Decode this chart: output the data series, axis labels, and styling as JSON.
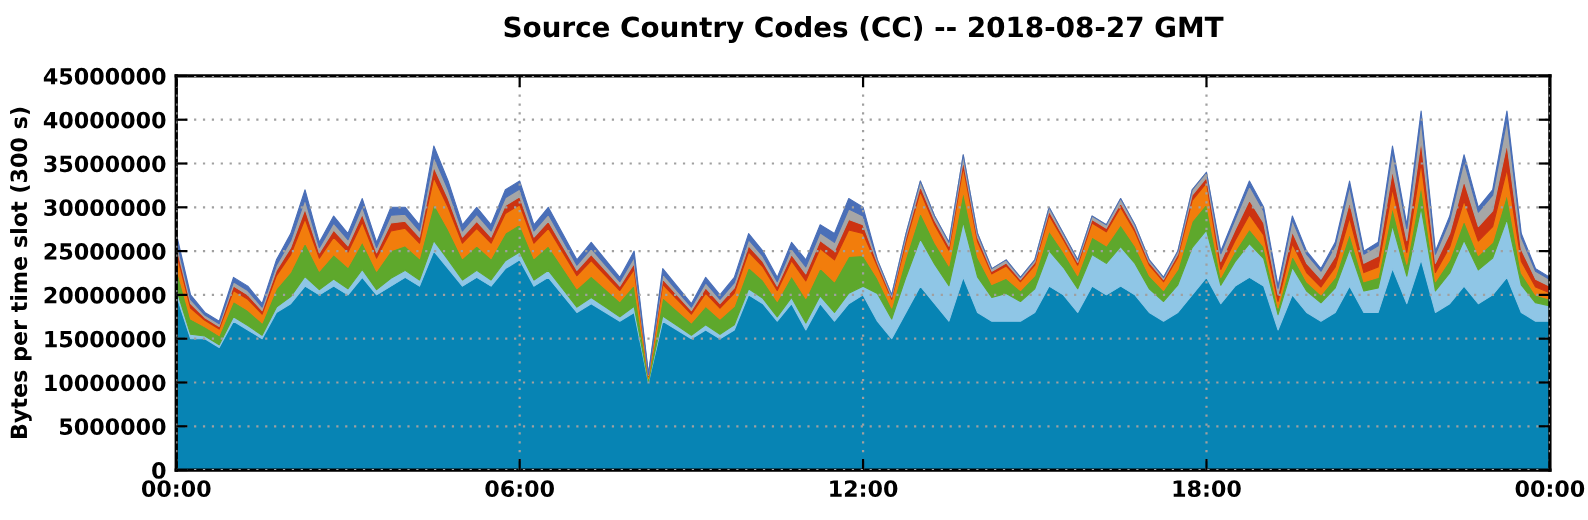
{
  "chart_data": {
    "type": "area",
    "stacked": true,
    "title": "Source Country Codes (CC) -- 2018-08-27 GMT",
    "ylabel": "Bytes per time slot (300 s)",
    "x": [
      0,
      0.25,
      0.5,
      0.75,
      1,
      1.25,
      1.5,
      1.75,
      2,
      2.25,
      2.5,
      2.75,
      3,
      3.25,
      3.5,
      3.75,
      4,
      4.25,
      4.5,
      4.75,
      5,
      5.25,
      5.5,
      5.75,
      6,
      6.25,
      6.5,
      6.75,
      7,
      7.25,
      7.5,
      7.75,
      8,
      8.25,
      8.5,
      8.75,
      9,
      9.25,
      9.5,
      9.75,
      10,
      10.25,
      10.5,
      10.75,
      11,
      11.25,
      11.5,
      11.75,
      12,
      12.25,
      12.5,
      12.75,
      13,
      13.25,
      13.5,
      13.75,
      14,
      14.25,
      14.5,
      14.75,
      15,
      15.25,
      15.5,
      15.75,
      16,
      16.25,
      16.5,
      16.75,
      17,
      17.25,
      17.5,
      17.75,
      18,
      18.25,
      18.5,
      18.75,
      19,
      19.25,
      19.5,
      19.75,
      20,
      20.25,
      20.5,
      20.75,
      21,
      21.25,
      21.5,
      21.75,
      22,
      22.25,
      22.5,
      22.75,
      23,
      23.25,
      23.5,
      23.75,
      24
    ],
    "series": [
      {
        "color": "#0784b4",
        "values": [
          20000000.0,
          15000000.0,
          15000000.0,
          14000000.0,
          17000000.0,
          16000000.0,
          15000000.0,
          18000000.0,
          19000000.0,
          21000000.0,
          20000000.0,
          21000000.0,
          20000000.0,
          22000000.0,
          20000000.0,
          21000000.0,
          22000000.0,
          21000000.0,
          25000000.0,
          23000000.0,
          21000000.0,
          22000000.0,
          21000000.0,
          23000000.0,
          24000000.0,
          21000000.0,
          22000000.0,
          20000000.0,
          18000000.0,
          19000000.0,
          18000000.0,
          17000000.0,
          18000000.0,
          10000000.0,
          17000000.0,
          16000000.0,
          15000000.0,
          16000000.0,
          15000000.0,
          16000000.0,
          20000000.0,
          19000000.0,
          17000000.0,
          19000000.0,
          16000000.0,
          19000000.0,
          17000000.0,
          19000000.0,
          20000000.0,
          17000000.0,
          15000000.0,
          18000000.0,
          21000000.0,
          19000000.0,
          17000000.0,
          22000000.0,
          18000000.0,
          17000000.0,
          17000000.0,
          17000000.0,
          18000000.0,
          21000000.0,
          20000000.0,
          18000000.0,
          21000000.0,
          20000000.0,
          21000000.0,
          20000000.0,
          18000000.0,
          17000000.0,
          18000000.0,
          20000000.0,
          22000000.0,
          19000000.0,
          21000000.0,
          22000000.0,
          21000000.0,
          16000000.0,
          20000000.0,
          18000000.0,
          17000000.0,
          18000000.0,
          21000000.0,
          18000000.0,
          18000000.0,
          23000000.0,
          19000000.0,
          24000000.0,
          18000000.0,
          19000000.0,
          21000000.0,
          19000000.0,
          20000000.0,
          22000000.0,
          18000000.0,
          17000000.0,
          17000000.0
        ]
      },
      {
        "color": "#8fc6e6",
        "values": [
          700000.0,
          500000.0,
          300000.0,
          300000.0,
          500000.0,
          500000.0,
          400000.0,
          600000.0,
          800000.0,
          1100000.0,
          600000.0,
          800000.0,
          700000.0,
          900000.0,
          600000.0,
          900000.0,
          800000.0,
          700000.0,
          1200000.0,
          1000000.0,
          700000.0,
          800000.0,
          700000.0,
          900000.0,
          900000.0,
          700000.0,
          800000.0,
          700000.0,
          600000.0,
          700000.0,
          600000.0,
          500000.0,
          700000.0,
          100000.0,
          600000.0,
          500000.0,
          400000.0,
          600000.0,
          500000.0,
          600000.0,
          700000.0,
          600000.0,
          500000.0,
          700000.0,
          800000.0,
          900000.0,
          1000000.0,
          1200000.0,
          1000000.0,
          3150000.0,
          2250000.0,
          4050000.0,
          5400000.0,
          4500000.0,
          4050000.0,
          6300000.0,
          4050000.0,
          2700000.0,
          3150000.0,
          2250000.0,
          2700000.0,
          4050000.0,
          3150000.0,
          2700000.0,
          3600000.0,
          3600000.0,
          4500000.0,
          3600000.0,
          2700000.0,
          2250000.0,
          3150000.0,
          5400000.0,
          5400000.0,
          2100000.0,
          2800000.0,
          3850000.0,
          3150000.0,
          1750000.0,
          3150000.0,
          2450000.0,
          2100000.0,
          2800000.0,
          4200000.0,
          2450000.0,
          2800000.0,
          4900000.0,
          3150000.0,
          5950000.0,
          2450000.0,
          3500000.0,
          5250000.0,
          3850000.0,
          4200000.0,
          6650000.0,
          3150000.0,
          2100000.0,
          1750000.0
        ]
      },
      {
        "color": "#5ea82c",
        "values": [
          2450000.0,
          1750000.0,
          1050000.0,
          1050000.0,
          1750000.0,
          1750000.0,
          1400000.0,
          2100000.0,
          2800000.0,
          3850000.0,
          2100000.0,
          2800000.0,
          2450000.0,
          3150000.0,
          2100000.0,
          3150000.0,
          2800000.0,
          2450000.0,
          4200000.0,
          3500000.0,
          2450000.0,
          2800000.0,
          2450000.0,
          3150000.0,
          3150000.0,
          2450000.0,
          2800000.0,
          2450000.0,
          2100000.0,
          2450000.0,
          2100000.0,
          1750000.0,
          2450000.0,
          350000.0,
          2100000.0,
          1750000.0,
          1400000.0,
          2100000.0,
          1750000.0,
          2100000.0,
          2450000.0,
          2100000.0,
          1750000.0,
          2450000.0,
          2800000.0,
          3150000.0,
          3500000.0,
          4200000.0,
          3500000.0,
          1750000.0,
          1250000.0,
          2250000.0,
          3000000.0,
          2500000.0,
          2250000.0,
          3500000.0,
          2250000.0,
          1500000.0,
          1750000.0,
          1250000.0,
          1500000.0,
          2250000.0,
          1750000.0,
          1500000.0,
          2000000.0,
          2000000.0,
          2500000.0,
          2000000.0,
          1500000.0,
          1250000.0,
          1750000.0,
          3000000.0,
          3000000.0,
          900000.0,
          1200000.0,
          1650000.0,
          1350000.0,
          750000.0,
          1350000.0,
          1050000.0,
          900000.0,
          1200000.0,
          1800000.0,
          1050000.0,
          1200000.0,
          2100000.0,
          1350000.0,
          2550000.0,
          1050000.0,
          1500000.0,
          2250000.0,
          1650000.0,
          1800000.0,
          2850000.0,
          1350000.0,
          900000.0,
          750000.0
        ]
      },
      {
        "color": "#f27d0c",
        "values": [
          1750000.0,
          1250000.0,
          750000.0,
          750000.0,
          1250000.0,
          1250000.0,
          1000000.0,
          1500000.0,
          2000000.0,
          2750000.0,
          1500000.0,
          2000000.0,
          1750000.0,
          2250000.0,
          1500000.0,
          2250000.0,
          2000000.0,
          1750000.0,
          3000000.0,
          2500000.0,
          1750000.0,
          2000000.0,
          1750000.0,
          2250000.0,
          2250000.0,
          1750000.0,
          2000000.0,
          1750000.0,
          1500000.0,
          1750000.0,
          1500000.0,
          1250000.0,
          1750000.0,
          250000.0,
          1500000.0,
          1250000.0,
          1000000.0,
          1500000.0,
          1250000.0,
          1500000.0,
          1750000.0,
          1500000.0,
          1250000.0,
          1750000.0,
          2000000.0,
          2250000.0,
          2500000.0,
          3000000.0,
          2500000.0,
          1400000.0,
          1000000.0,
          1800000.0,
          2400000.0,
          2000000.0,
          1800000.0,
          2800000.0,
          1800000.0,
          1200000.0,
          1400000.0,
          1000000.0,
          1200000.0,
          1800000.0,
          1400000.0,
          1200000.0,
          1600000.0,
          1600000.0,
          2000000.0,
          1600000.0,
          1200000.0,
          1000000.0,
          1400000.0,
          2400000.0,
          2400000.0,
          900000.0,
          1200000.0,
          1650000.0,
          1350000.0,
          750000.0,
          1350000.0,
          1050000.0,
          900000.0,
          1200000.0,
          1800000.0,
          1050000.0,
          1200000.0,
          2100000.0,
          1350000.0,
          2550000.0,
          1050000.0,
          1500000.0,
          2250000.0,
          1650000.0,
          1800000.0,
          2850000.0,
          1350000.0,
          900000.0,
          750000.0
        ]
      },
      {
        "color": "#cc3311",
        "values": [
          700000.0,
          500000.0,
          300000.0,
          300000.0,
          500000.0,
          500000.0,
          400000.0,
          600000.0,
          800000.0,
          1100000.0,
          600000.0,
          800000.0,
          700000.0,
          900000.0,
          600000.0,
          900000.0,
          800000.0,
          700000.0,
          1200000.0,
          1000000.0,
          700000.0,
          800000.0,
          700000.0,
          900000.0,
          900000.0,
          700000.0,
          800000.0,
          700000.0,
          600000.0,
          700000.0,
          600000.0,
          500000.0,
          700000.0,
          100000.0,
          600000.0,
          500000.0,
          400000.0,
          600000.0,
          500000.0,
          600000.0,
          700000.0,
          600000.0,
          500000.0,
          700000.0,
          800000.0,
          900000.0,
          1000000.0,
          1200000.0,
          1000000.0,
          350000.0,
          250000.0,
          450000.0,
          600000.0,
          500000.0,
          450000.0,
          700000.0,
          450000.0,
          300000.0,
          350000.0,
          250000.0,
          300000.0,
          450000.0,
          350000.0,
          300000.0,
          400000.0,
          400000.0,
          500000.0,
          400000.0,
          300000.0,
          250000.0,
          350000.0,
          600000.0,
          600000.0,
          900000.0,
          1200000.0,
          1650000.0,
          1350000.0,
          750000.0,
          1350000.0,
          1050000.0,
          900000.0,
          1200000.0,
          1800000.0,
          1050000.0,
          1200000.0,
          2100000.0,
          1350000.0,
          2550000.0,
          1050000.0,
          1500000.0,
          2250000.0,
          1650000.0,
          1800000.0,
          2850000.0,
          1350000.0,
          900000.0,
          750000.0
        ]
      },
      {
        "color": "#a6a6a6",
        "values": [
          700000.0,
          500000.0,
          300000.0,
          300000.0,
          500000.0,
          500000.0,
          400000.0,
          600000.0,
          800000.0,
          1100000.0,
          600000.0,
          800000.0,
          700000.0,
          900000.0,
          600000.0,
          900000.0,
          800000.0,
          700000.0,
          1200000.0,
          1000000.0,
          700000.0,
          800000.0,
          700000.0,
          900000.0,
          900000.0,
          700000.0,
          800000.0,
          700000.0,
          600000.0,
          700000.0,
          600000.0,
          500000.0,
          700000.0,
          100000.0,
          600000.0,
          500000.0,
          400000.0,
          600000.0,
          500000.0,
          600000.0,
          700000.0,
          600000.0,
          500000.0,
          700000.0,
          800000.0,
          900000.0,
          1000000.0,
          1200000.0,
          1000000.0,
          350000.0,
          250000.0,
          450000.0,
          600000.0,
          500000.0,
          450000.0,
          700000.0,
          450000.0,
          300000.0,
          350000.0,
          250000.0,
          300000.0,
          450000.0,
          350000.0,
          300000.0,
          400000.0,
          400000.0,
          500000.0,
          400000.0,
          300000.0,
          250000.0,
          350000.0,
          600000.0,
          600000.0,
          900000.0,
          1200000.0,
          1650000.0,
          1350000.0,
          750000.0,
          1350000.0,
          1050000.0,
          900000.0,
          1200000.0,
          1800000.0,
          1050000.0,
          1200000.0,
          2100000.0,
          1350000.0,
          2550000.0,
          1050000.0,
          1500000.0,
          2250000.0,
          1650000.0,
          1800000.0,
          2850000.0,
          1350000.0,
          900000.0,
          750000.0
        ]
      },
      {
        "color": "#4a6fb8",
        "values": [
          700000.0,
          500000.0,
          300000.0,
          300000.0,
          500000.0,
          500000.0,
          400000.0,
          600000.0,
          800000.0,
          1100000.0,
          600000.0,
          800000.0,
          700000.0,
          900000.0,
          600000.0,
          900000.0,
          800000.0,
          700000.0,
          1200000.0,
          1000000.0,
          700000.0,
          800000.0,
          700000.0,
          900000.0,
          900000.0,
          700000.0,
          800000.0,
          700000.0,
          600000.0,
          700000.0,
          600000.0,
          500000.0,
          700000.0,
          100000.0,
          600000.0,
          500000.0,
          400000.0,
          600000.0,
          500000.0,
          600000.0,
          700000.0,
          600000.0,
          500000.0,
          700000.0,
          800000.0,
          900000.0,
          1000000.0,
          1200000.0,
          1000000.0,
          0,
          0,
          0,
          0,
          0,
          0,
          0,
          0,
          0,
          0,
          0,
          0,
          0,
          0,
          0,
          0,
          0,
          0,
          0,
          0,
          0,
          0,
          0,
          0,
          300000.0,
          400000.0,
          550000.0,
          450000.0,
          250000.0,
          450000.0,
          350000.0,
          300000.0,
          400000.0,
          600000.0,
          350000.0,
          400000.0,
          700000.0,
          450000.0,
          850000.0,
          350000.0,
          500000.0,
          750000.0,
          550000.0,
          600000.0,
          950000.0,
          450000.0,
          300000.0,
          250000.0
        ]
      }
    ],
    "xlim": [
      0,
      24
    ],
    "xticks": [
      {
        "value": 0,
        "label": "00:00"
      },
      {
        "value": 6,
        "label": "06:00"
      },
      {
        "value": 12,
        "label": "12:00"
      },
      {
        "value": 18,
        "label": "18:00"
      },
      {
        "value": 24,
        "label": "00:00"
      }
    ],
    "ylim": [
      0,
      45000000
    ],
    "yticks": [
      0,
      5000000,
      10000000,
      15000000,
      20000000,
      25000000,
      30000000,
      35000000,
      40000000,
      45000000
    ],
    "grid": true
  }
}
